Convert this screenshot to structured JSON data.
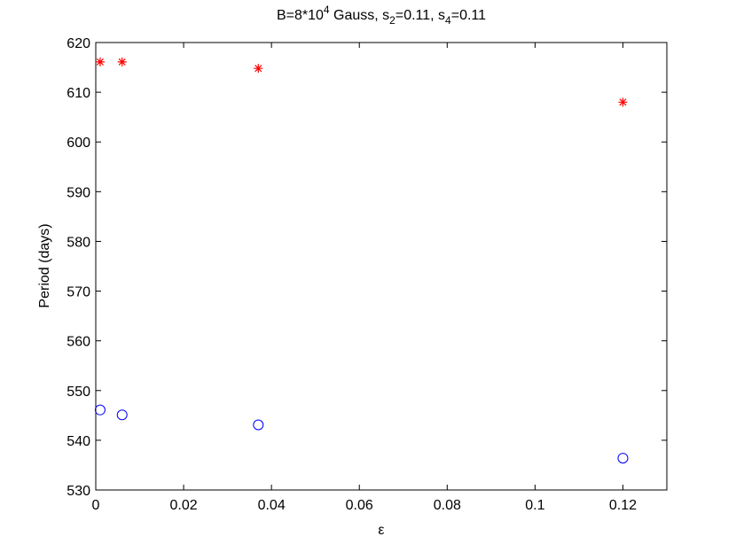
{
  "chart_data": {
    "type": "scatter",
    "title": [
      "B=8*10",
      "4",
      " Gauss, s",
      "2",
      "=0.11, s",
      "4",
      "=0.11"
    ],
    "x_label": "ε",
    "y_label": "Period (days)",
    "xlim": [
      0,
      0.13
    ],
    "xticks": [
      0,
      0.02,
      0.04,
      0.06,
      0.08,
      0.1,
      0.12
    ],
    "ylim": [
      530,
      620
    ],
    "yticks": [
      530,
      540,
      550,
      560,
      570,
      580,
      590,
      600,
      610,
      620
    ],
    "grid": false,
    "series": [
      {
        "color": "#ff0000",
        "marker": "*",
        "x": [
          0.001,
          0.006,
          0.037,
          0.12
        ],
        "values": [
          616.1,
          616.1,
          614.8,
          608.0
        ]
      },
      {
        "color": "#0000ff",
        "marker": "o",
        "x": [
          0.001,
          0.006,
          0.037,
          0.12
        ],
        "values": [
          546.1,
          545.1,
          543.1,
          536.4
        ]
      }
    ]
  }
}
